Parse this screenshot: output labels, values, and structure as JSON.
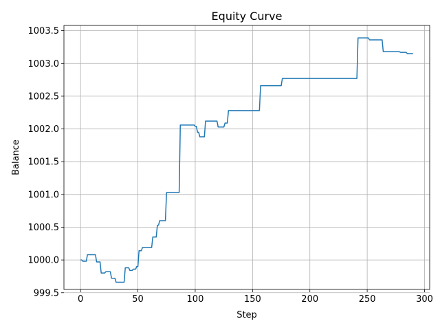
{
  "chart_data": {
    "type": "line",
    "title": "Equity Curve",
    "xlabel": "Step",
    "ylabel": "Balance",
    "xlim": [
      -14.5,
      304.5
    ],
    "ylim": [
      999.55,
      1003.58
    ],
    "grid": true,
    "xticks": [
      0,
      50,
      100,
      150,
      200,
      250,
      300
    ],
    "yticks": [
      999.5,
      1000.0,
      1000.5,
      1001.0,
      1001.5,
      1002.0,
      1002.5,
      1003.0,
      1003.5
    ],
    "xtick_labels": [
      "0",
      "50",
      "100",
      "150",
      "200",
      "250",
      "300"
    ],
    "ytick_labels": [
      "999.5",
      "1000.0",
      "1000.5",
      "1001.0",
      "1001.5",
      "1002.0",
      "1002.5",
      "1003.0",
      "1003.5"
    ],
    "colors": {
      "line": "#1f77b4",
      "grid": "#b0b0b0",
      "axes": "#000000"
    },
    "series": [
      {
        "x": [
          0,
          1,
          2,
          5,
          6,
          13,
          14,
          17,
          18,
          21,
          22,
          26,
          27,
          30,
          31,
          38,
          39,
          42,
          43,
          45,
          46,
          48,
          49,
          50,
          51,
          53,
          54,
          56,
          57,
          62,
          63,
          66,
          67,
          68,
          69,
          70,
          71,
          74,
          75,
          86,
          87,
          99,
          100,
          101,
          102,
          103,
          104,
          108,
          109,
          119,
          120,
          125,
          126,
          128,
          129,
          156,
          157,
          175,
          176,
          241,
          242,
          251,
          252,
          263,
          264,
          278,
          279,
          284,
          285,
          290
        ],
        "y": [
          1000.0,
          1000.0,
          999.98,
          999.98,
          1000.08,
          1000.08,
          999.97,
          999.97,
          999.8,
          999.8,
          999.82,
          999.82,
          999.72,
          999.72,
          999.66,
          999.66,
          999.88,
          999.88,
          999.84,
          999.84,
          999.86,
          999.86,
          999.9,
          999.9,
          1000.14,
          1000.14,
          1000.19,
          1000.19,
          1000.19,
          1000.19,
          1000.35,
          1000.35,
          1000.53,
          1000.53,
          1000.6,
          1000.6,
          1000.6,
          1000.6,
          1001.03,
          1001.03,
          1002.06,
          1002.06,
          1002.04,
          1002.04,
          1001.95,
          1001.95,
          1001.88,
          1001.88,
          1002.12,
          1002.12,
          1002.03,
          1002.03,
          1002.09,
          1002.09,
          1002.28,
          1002.28,
          1002.66,
          1002.66,
          1002.77,
          1002.77,
          1003.39,
          1003.39,
          1003.36,
          1003.36,
          1003.18,
          1003.18,
          1003.17,
          1003.17,
          1003.15,
          1003.15
        ]
      }
    ]
  }
}
